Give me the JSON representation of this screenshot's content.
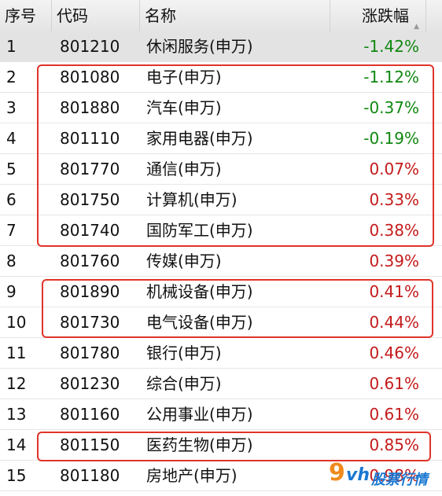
{
  "header": {
    "col_index": "序号",
    "col_code": "代码",
    "col_name": "名称",
    "col_change": "涨跌幅",
    "sort_icon": "sort-up-icon"
  },
  "rows": [
    {
      "index": "1",
      "code": "801210",
      "name": "休闲服务(申万)",
      "change": "-1.42%",
      "dir": "neg",
      "selected": true
    },
    {
      "index": "2",
      "code": "801080",
      "name": "电子(申万)",
      "change": "-1.12%",
      "dir": "neg"
    },
    {
      "index": "3",
      "code": "801880",
      "name": "汽车(申万)",
      "change": "-0.37%",
      "dir": "neg"
    },
    {
      "index": "4",
      "code": "801110",
      "name": "家用电器(申万)",
      "change": "-0.19%",
      "dir": "neg"
    },
    {
      "index": "5",
      "code": "801770",
      "name": "通信(申万)",
      "change": "0.07%",
      "dir": "pos"
    },
    {
      "index": "6",
      "code": "801750",
      "name": "计算机(申万)",
      "change": "0.33%",
      "dir": "pos"
    },
    {
      "index": "7",
      "code": "801740",
      "name": "国防军工(申万)",
      "change": "0.38%",
      "dir": "pos"
    },
    {
      "index": "8",
      "code": "801760",
      "name": "传媒(申万)",
      "change": "0.39%",
      "dir": "pos"
    },
    {
      "index": "9",
      "code": "801890",
      "name": "机械设备(申万)",
      "change": "0.41%",
      "dir": "pos"
    },
    {
      "index": "10",
      "code": "801730",
      "name": "电气设备(申万)",
      "change": "0.44%",
      "dir": "pos"
    },
    {
      "index": "11",
      "code": "801780",
      "name": "银行(申万)",
      "change": "0.46%",
      "dir": "pos"
    },
    {
      "index": "12",
      "code": "801230",
      "name": "综合(申万)",
      "change": "0.61%",
      "dir": "pos"
    },
    {
      "index": "13",
      "code": "801160",
      "name": "公用事业(申万)",
      "change": "0.61%",
      "dir": "pos"
    },
    {
      "index": "14",
      "code": "801150",
      "name": "医药生物(申万)",
      "change": "0.85%",
      "dir": "pos"
    },
    {
      "index": "15",
      "code": "801180",
      "name": "房地产(申万)",
      "change": "0.98%",
      "dir": "pos"
    }
  ],
  "colors": {
    "negative": "#108810",
    "positive": "#c41a1a",
    "highlight": "#e0342a"
  },
  "watermark": {
    "mark": "9",
    "brand": "vh",
    "text": "股票行情"
  }
}
